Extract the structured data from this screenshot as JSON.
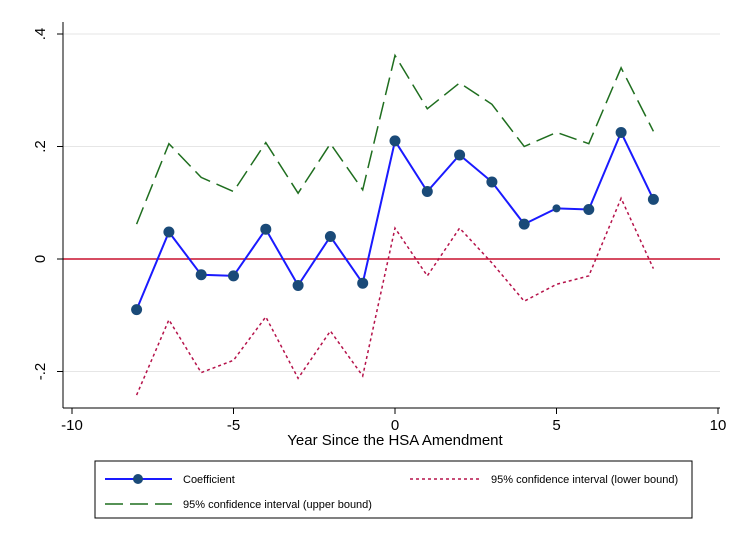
{
  "chart_data": {
    "type": "line",
    "xlabel": "Year Since the HSA Amendment",
    "ylabel": "",
    "xlim": [
      -10,
      10
    ],
    "ylim": [
      -0.26,
      0.43
    ],
    "x_ticks": [
      -10,
      -5,
      0,
      5,
      10
    ],
    "x_tick_labels": [
      "-10",
      "-5",
      "0",
      "5",
      "10"
    ],
    "y_ticks": [
      -0.2,
      0,
      0.2,
      0.4
    ],
    "y_tick_labels": [
      "-.2",
      "0",
      ".2",
      ".4"
    ],
    "grid": "horizontal",
    "reference_line": {
      "y": 0,
      "color": "#c8102e"
    },
    "legend_position": "bottom",
    "x": [
      -8,
      -7,
      -6,
      -5,
      -4,
      -3,
      -2,
      -1,
      0,
      1,
      2,
      3,
      4,
      5,
      6,
      7,
      8
    ],
    "series": [
      {
        "name": "Coefficient",
        "style": "solid-with-markers",
        "color": "#1a1aff",
        "marker_color": "#1a4a78",
        "values": [
          -0.09,
          0.048,
          -0.028,
          -0.03,
          0.053,
          -0.047,
          0.04,
          -0.043,
          0.21,
          0.12,
          0.185,
          0.137,
          0.062,
          0.09,
          0.088,
          0.225,
          0.106
        ]
      },
      {
        "name": "95% confidence interval (lower bound)",
        "style": "short-dash",
        "color": "#b5124a",
        "values": [
          -0.242,
          -0.108,
          -0.202,
          -0.18,
          -0.103,
          -0.212,
          -0.128,
          -0.208,
          0.055,
          -0.03,
          0.055,
          -0.007,
          -0.075,
          -0.045,
          -0.03,
          0.108,
          -0.017
        ]
      },
      {
        "name": "95% confidence interval (upper bound)",
        "style": "long-dash",
        "color": "#1f6e1f",
        "values": [
          0.062,
          0.205,
          0.145,
          0.12,
          0.207,
          0.117,
          0.205,
          0.123,
          0.362,
          0.267,
          0.313,
          0.275,
          0.2,
          0.225,
          0.205,
          0.34,
          0.227
        ]
      }
    ]
  }
}
